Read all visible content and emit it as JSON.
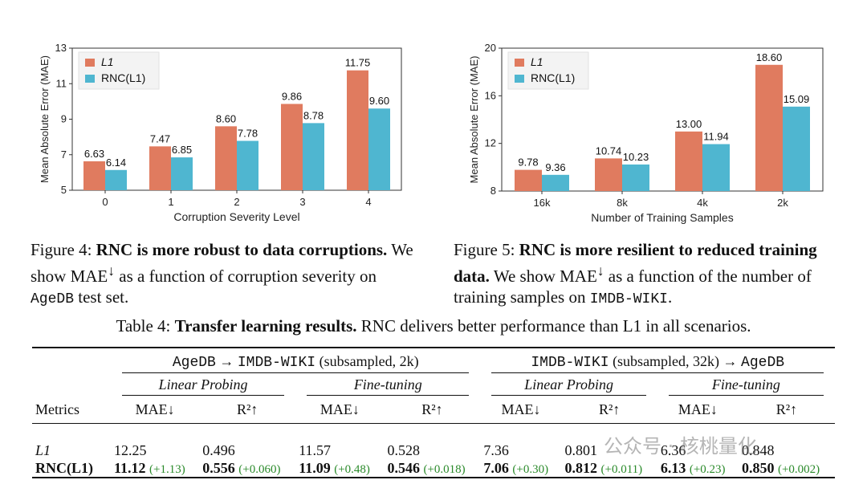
{
  "chart_data": [
    {
      "type": "bar",
      "ylabel": "Mean Absolute Error (MAE)",
      "xlabel": "Corruption Severity Level",
      "categories": [
        "0",
        "1",
        "2",
        "3",
        "4"
      ],
      "ylim": [
        5,
        13
      ],
      "yticks": [
        "5",
        "7",
        "9",
        "11",
        "13"
      ],
      "legend_placement": "top-left",
      "series": [
        {
          "name": "L1",
          "color": "#e07b5f",
          "values": [
            6.63,
            7.47,
            8.6,
            9.86,
            11.75
          ],
          "labels": [
            "6.63",
            "7.47",
            "8.60",
            "9.86",
            "11.75"
          ]
        },
        {
          "name": "RNC(L1)",
          "color": "#4fb6d0",
          "values": [
            6.14,
            6.85,
            7.78,
            8.78,
            9.6
          ],
          "labels": [
            "6.14",
            "6.85",
            "7.78",
            "8.78",
            "9.60"
          ]
        }
      ]
    },
    {
      "type": "bar",
      "ylabel": "Mean Absolute Error (MAE)",
      "xlabel": "Number of Training Samples",
      "categories": [
        "16k",
        "8k",
        "4k",
        "2k"
      ],
      "ylim": [
        8,
        20
      ],
      "yticks": [
        "8",
        "12",
        "16",
        "20"
      ],
      "legend_placement": "top-left",
      "series": [
        {
          "name": "L1",
          "color": "#e07b5f",
          "values": [
            9.78,
            10.74,
            13.0,
            18.6
          ],
          "labels": [
            "9.78",
            "10.74",
            "13.00",
            "18.60"
          ]
        },
        {
          "name": "RNC(L1)",
          "color": "#4fb6d0",
          "values": [
            9.36,
            10.23,
            11.94,
            15.09
          ],
          "labels": [
            "9.36",
            "10.23",
            "11.94",
            "15.09"
          ]
        }
      ]
    }
  ],
  "captions": {
    "fig4": {
      "label": "Figure 4:",
      "title": "RNC is more robust to data corruptions.",
      "body_pre": "We show MAE",
      "body_mid": " as a function of corruption severity on ",
      "dataset": "AgeDB",
      "body_post": " test set."
    },
    "fig5": {
      "label": "Figure 5:",
      "title": "RNC is more resilient to reduced training data.",
      "body_pre": "We show MAE",
      "body_mid": " as a function of the number of training samples on ",
      "dataset": "IMDB-WIKI",
      "body_post": "."
    },
    "table4": {
      "label": "Table 4:",
      "title": "Transfer learning results.",
      "body": " RNC delivers better performance than L1 in all scenarios."
    }
  },
  "table": {
    "groups": [
      {
        "src": "AgeDB",
        "arrow": "→",
        "dst": "IMDB-WIKI",
        "note": "(subsampled, 2k)"
      },
      {
        "src": "IMDB-WIKI",
        "note_mid": "(subsampled, 32k)",
        "arrow": "→",
        "dst": "AgeDB"
      }
    ],
    "subgroups": [
      "Linear Probing",
      "Fine-tuning",
      "Linear Probing",
      "Fine-tuning"
    ],
    "metrics_label": "Metrics",
    "columns": [
      "MAE↓",
      "R²↑",
      "MAE↓",
      "R²↑",
      "MAE↓",
      "R²↑",
      "MAE↓",
      "R²↑"
    ],
    "rows": [
      {
        "name": "L1",
        "cells": [
          [
            "12.25",
            ""
          ],
          [
            "0.496",
            ""
          ],
          [
            "11.57",
            ""
          ],
          [
            "0.528",
            ""
          ],
          [
            "7.36",
            ""
          ],
          [
            "0.801",
            ""
          ],
          [
            "6.36",
            ""
          ],
          [
            "0.848",
            ""
          ]
        ]
      },
      {
        "name": "RNC(L1)",
        "cells": [
          [
            "11.12",
            "(+1.13)"
          ],
          [
            "0.556",
            "(+0.060)"
          ],
          [
            "11.09",
            "(+0.48)"
          ],
          [
            "0.546",
            "(+0.018)"
          ],
          [
            "7.06",
            "(+0.30)"
          ],
          [
            "0.812",
            "(+0.011)"
          ],
          [
            "6.13",
            "(+0.23)"
          ],
          [
            "0.850",
            "(+0.002)"
          ]
        ]
      }
    ]
  },
  "watermark": "公众号 · 核桃量化"
}
